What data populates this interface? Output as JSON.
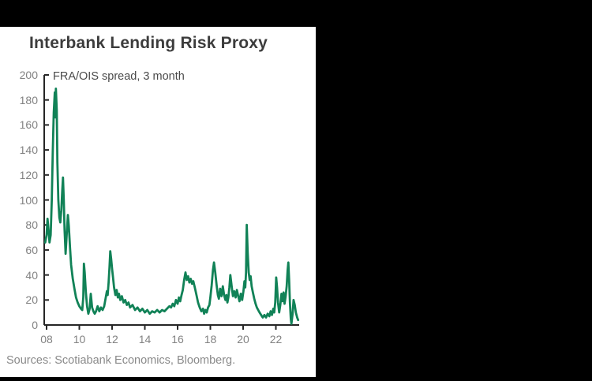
{
  "header": {
    "title": "Interbank Lending Risk Proxy"
  },
  "footer": {
    "sources": "Sources: Scotiabank Economics, Bloomberg."
  },
  "colors": {
    "background": "#000000",
    "panel": "#ffffff",
    "line": "#118257",
    "axis": "#262626",
    "title_text": "#3c3c3c",
    "label_text": "#828282",
    "annotation_text": "#4a4a4a",
    "sources_text": "#8a8a8a"
  },
  "chart_data": {
    "type": "line",
    "title": "Interbank Lending Risk Proxy",
    "series_label": "FRA/OIS spread, 3 month",
    "xlabel": "",
    "ylabel": "",
    "ylim": [
      0,
      200
    ],
    "xlim": [
      2007.9,
      2023.45
    ],
    "grid": false,
    "legend_position": "top-left-annotation",
    "y_ticks": [
      0,
      20,
      40,
      60,
      80,
      100,
      120,
      140,
      160,
      180,
      200
    ],
    "x_ticks": [
      {
        "label": "08",
        "year": 2008
      },
      {
        "label": "10",
        "year": 2010
      },
      {
        "label": "12",
        "year": 2012
      },
      {
        "label": "14",
        "year": 2014
      },
      {
        "label": "16",
        "year": 2016
      },
      {
        "label": "18",
        "year": 2018
      },
      {
        "label": "20",
        "year": 2020
      },
      {
        "label": "22",
        "year": 2022
      }
    ],
    "points": [
      [
        2007.92,
        66
      ],
      [
        2008.0,
        72
      ],
      [
        2008.06,
        85
      ],
      [
        2008.12,
        76
      ],
      [
        2008.18,
        66
      ],
      [
        2008.25,
        72
      ],
      [
        2008.32,
        100
      ],
      [
        2008.38,
        140
      ],
      [
        2008.44,
        170
      ],
      [
        2008.5,
        186
      ],
      [
        2008.53,
        166
      ],
      [
        2008.57,
        189
      ],
      [
        2008.62,
        172
      ],
      [
        2008.66,
        130
      ],
      [
        2008.72,
        100
      ],
      [
        2008.78,
        86
      ],
      [
        2008.84,
        82
      ],
      [
        2008.9,
        92
      ],
      [
        2008.96,
        108
      ],
      [
        2009.0,
        118
      ],
      [
        2009.05,
        100
      ],
      [
        2009.1,
        76
      ],
      [
        2009.16,
        57
      ],
      [
        2009.22,
        70
      ],
      [
        2009.3,
        88
      ],
      [
        2009.36,
        79
      ],
      [
        2009.43,
        62
      ],
      [
        2009.5,
        48
      ],
      [
        2009.6,
        37
      ],
      [
        2009.7,
        29
      ],
      [
        2009.8,
        22
      ],
      [
        2009.9,
        18
      ],
      [
        2010.0,
        15
      ],
      [
        2010.1,
        13
      ],
      [
        2010.18,
        12
      ],
      [
        2010.24,
        22
      ],
      [
        2010.28,
        49
      ],
      [
        2010.33,
        42
      ],
      [
        2010.4,
        26
      ],
      [
        2010.47,
        15
      ],
      [
        2010.55,
        9
      ],
      [
        2010.63,
        13
      ],
      [
        2010.7,
        25
      ],
      [
        2010.78,
        14
      ],
      [
        2010.86,
        11
      ],
      [
        2010.94,
        9
      ],
      [
        2011.02,
        11
      ],
      [
        2011.12,
        15
      ],
      [
        2011.22,
        11
      ],
      [
        2011.32,
        14
      ],
      [
        2011.42,
        12
      ],
      [
        2011.52,
        15
      ],
      [
        2011.6,
        21
      ],
      [
        2011.68,
        27
      ],
      [
        2011.73,
        24
      ],
      [
        2011.79,
        34
      ],
      [
        2011.84,
        46
      ],
      [
        2011.89,
        59
      ],
      [
        2011.94,
        53
      ],
      [
        2012.0,
        45
      ],
      [
        2012.06,
        38
      ],
      [
        2012.12,
        30
      ],
      [
        2012.2,
        24
      ],
      [
        2012.28,
        28
      ],
      [
        2012.35,
        22
      ],
      [
        2012.42,
        25
      ],
      [
        2012.5,
        20
      ],
      [
        2012.6,
        23
      ],
      [
        2012.7,
        18
      ],
      [
        2012.8,
        20
      ],
      [
        2012.9,
        16
      ],
      [
        2013.0,
        18
      ],
      [
        2013.1,
        14
      ],
      [
        2013.25,
        16
      ],
      [
        2013.4,
        12
      ],
      [
        2013.55,
        14
      ],
      [
        2013.7,
        11
      ],
      [
        2013.85,
        13
      ],
      [
        2014.0,
        10
      ],
      [
        2014.15,
        12
      ],
      [
        2014.3,
        9
      ],
      [
        2014.45,
        11
      ],
      [
        2014.6,
        10
      ],
      [
        2014.75,
        12
      ],
      [
        2014.9,
        10
      ],
      [
        2015.05,
        12
      ],
      [
        2015.2,
        11
      ],
      [
        2015.35,
        13
      ],
      [
        2015.5,
        15
      ],
      [
        2015.6,
        14
      ],
      [
        2015.7,
        17
      ],
      [
        2015.8,
        15
      ],
      [
        2015.9,
        20
      ],
      [
        2016.0,
        17
      ],
      [
        2016.08,
        22
      ],
      [
        2016.16,
        19
      ],
      [
        2016.24,
        24
      ],
      [
        2016.32,
        28
      ],
      [
        2016.4,
        36
      ],
      [
        2016.48,
        42
      ],
      [
        2016.56,
        36
      ],
      [
        2016.64,
        39
      ],
      [
        2016.72,
        34
      ],
      [
        2016.8,
        37
      ],
      [
        2016.88,
        33
      ],
      [
        2016.96,
        35
      ],
      [
        2017.05,
        30
      ],
      [
        2017.15,
        24
      ],
      [
        2017.25,
        18
      ],
      [
        2017.35,
        14
      ],
      [
        2017.45,
        11
      ],
      [
        2017.55,
        13
      ],
      [
        2017.62,
        9
      ],
      [
        2017.7,
        12
      ],
      [
        2017.78,
        10
      ],
      [
        2017.86,
        14
      ],
      [
        2017.94,
        16
      ],
      [
        2018.0,
        22
      ],
      [
        2018.08,
        32
      ],
      [
        2018.16,
        44
      ],
      [
        2018.22,
        50
      ],
      [
        2018.3,
        42
      ],
      [
        2018.38,
        32
      ],
      [
        2018.46,
        24
      ],
      [
        2018.52,
        21
      ],
      [
        2018.6,
        29
      ],
      [
        2018.68,
        23
      ],
      [
        2018.76,
        31
      ],
      [
        2018.84,
        24
      ],
      [
        2018.92,
        20
      ],
      [
        2018.98,
        24
      ],
      [
        2019.04,
        18
      ],
      [
        2019.1,
        22
      ],
      [
        2019.16,
        30
      ],
      [
        2019.22,
        40
      ],
      [
        2019.3,
        31
      ],
      [
        2019.38,
        23
      ],
      [
        2019.46,
        27
      ],
      [
        2019.54,
        22
      ],
      [
        2019.62,
        28
      ],
      [
        2019.7,
        23
      ],
      [
        2019.78,
        19
      ],
      [
        2019.86,
        25
      ],
      [
        2019.94,
        20
      ],
      [
        2020.02,
        27
      ],
      [
        2020.08,
        35
      ],
      [
        2020.13,
        30
      ],
      [
        2020.18,
        42
      ],
      [
        2020.22,
        80
      ],
      [
        2020.28,
        58
      ],
      [
        2020.34,
        42
      ],
      [
        2020.4,
        36
      ],
      [
        2020.46,
        39
      ],
      [
        2020.52,
        31
      ],
      [
        2020.6,
        26
      ],
      [
        2020.68,
        21
      ],
      [
        2020.76,
        17
      ],
      [
        2020.84,
        14
      ],
      [
        2020.92,
        12
      ],
      [
        2021.0,
        10
      ],
      [
        2021.1,
        8
      ],
      [
        2021.2,
        6
      ],
      [
        2021.3,
        8
      ],
      [
        2021.4,
        6
      ],
      [
        2021.5,
        9
      ],
      [
        2021.6,
        7
      ],
      [
        2021.68,
        11
      ],
      [
        2021.76,
        8
      ],
      [
        2021.84,
        13
      ],
      [
        2021.9,
        10
      ],
      [
        2021.96,
        18
      ],
      [
        2022.02,
        38
      ],
      [
        2022.07,
        30
      ],
      [
        2022.13,
        18
      ],
      [
        2022.2,
        10
      ],
      [
        2022.27,
        16
      ],
      [
        2022.34,
        25
      ],
      [
        2022.4,
        19
      ],
      [
        2022.47,
        26
      ],
      [
        2022.53,
        17
      ],
      [
        2022.6,
        23
      ],
      [
        2022.66,
        31
      ],
      [
        2022.72,
        44
      ],
      [
        2022.76,
        50
      ],
      [
        2022.81,
        36
      ],
      [
        2022.86,
        18
      ],
      [
        2022.91,
        5
      ],
      [
        2022.95,
        1
      ],
      [
        2023.02,
        9
      ],
      [
        2023.08,
        20
      ],
      [
        2023.15,
        16
      ],
      [
        2023.22,
        10
      ],
      [
        2023.3,
        6
      ],
      [
        2023.36,
        4
      ]
    ]
  }
}
